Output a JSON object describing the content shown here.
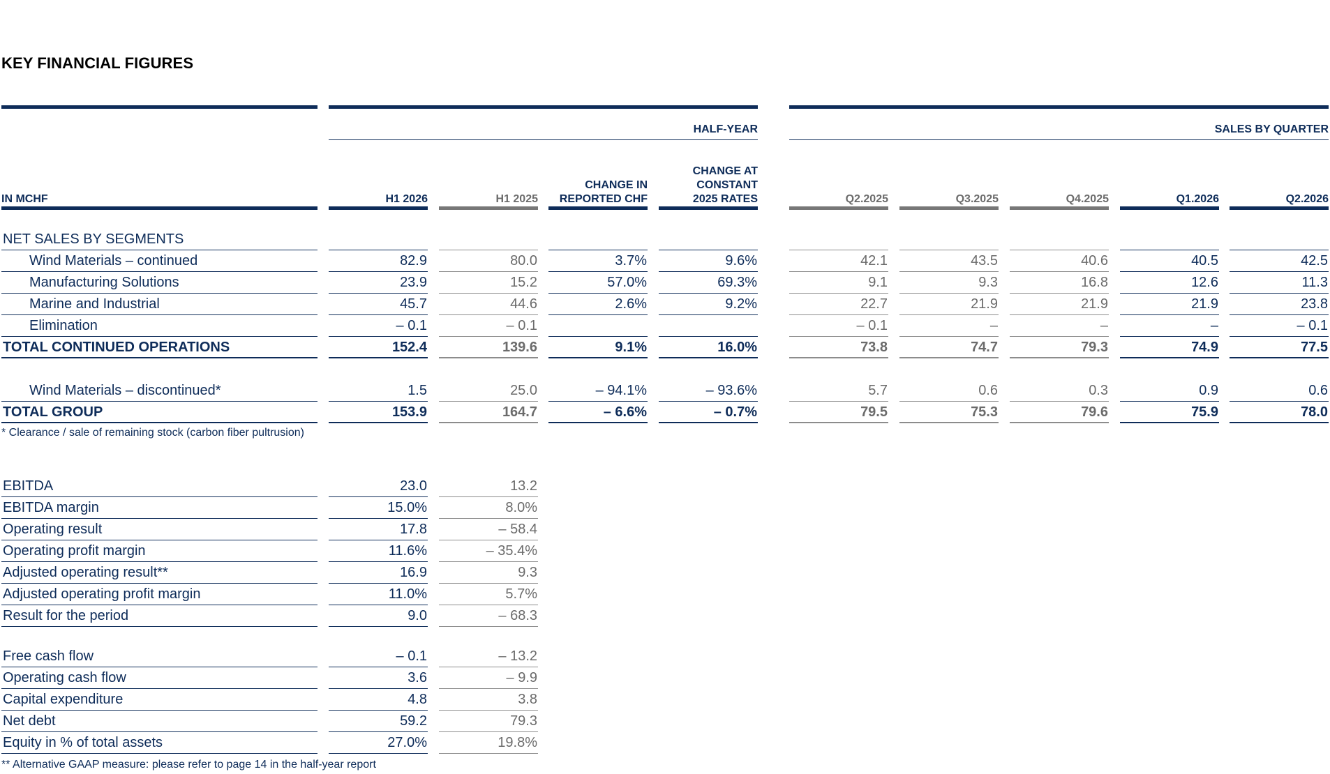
{
  "title": "KEY FINANCIAL FIGURES",
  "headers": {
    "unit_label": "IN MCHF",
    "half_year_group": "HALF-YEAR",
    "quarter_group": "SALES BY QUARTER",
    "half_year_cols": [
      {
        "lines": [
          "H1 2026"
        ],
        "style": "current"
      },
      {
        "lines": [
          "H1 2025"
        ],
        "style": "prior"
      },
      {
        "lines": [
          "CHANGE IN",
          "REPORTED CHF"
        ],
        "style": "current"
      },
      {
        "lines": [
          "CHANGE AT",
          "CONSTANT",
          "2025 RATES"
        ],
        "style": "current"
      }
    ],
    "quarter_cols": [
      {
        "lines": [
          "Q2.2025"
        ],
        "style": "prior"
      },
      {
        "lines": [
          "Q3.2025"
        ],
        "style": "prior"
      },
      {
        "lines": [
          "Q4.2025"
        ],
        "style": "prior"
      },
      {
        "lines": [
          "Q1.2026"
        ],
        "style": "current"
      },
      {
        "lines": [
          "Q2.2026"
        ],
        "style": "current"
      }
    ]
  },
  "sales_table": [
    {
      "label": "NET SALES BY SEGMENTS",
      "kind": "section",
      "values": [
        "",
        "",
        "",
        "",
        "",
        "",
        "",
        "",
        ""
      ]
    },
    {
      "label": "Wind Materials – continued",
      "kind": "indent",
      "values": [
        "82.9",
        "80.0",
        "3.7%",
        "9.6%",
        "42.1",
        "43.5",
        "40.6",
        "40.5",
        "42.5"
      ]
    },
    {
      "label": "Manufacturing Solutions",
      "kind": "indent",
      "values": [
        "23.9",
        "15.2",
        "57.0%",
        "69.3%",
        "9.1",
        "9.3",
        "16.8",
        "12.6",
        "11.3"
      ]
    },
    {
      "label": "Marine and Industrial",
      "kind": "indent",
      "values": [
        "45.7",
        "44.6",
        "2.6%",
        "9.2%",
        "22.7",
        "21.9",
        "21.9",
        "21.9",
        "23.8"
      ]
    },
    {
      "label": "Elimination",
      "kind": "indent",
      "values": [
        "– 0.1",
        "– 0.1",
        "",
        "",
        "– 0.1",
        "–",
        "–",
        "–",
        "– 0.1"
      ]
    },
    {
      "label": "TOTAL CONTINUED OPERATIONS",
      "kind": "total",
      "values": [
        "152.4",
        "139.6",
        "9.1%",
        "16.0%",
        "73.8",
        "74.7",
        "79.3",
        "74.9",
        "77.5"
      ]
    },
    {
      "label": "Wind Materials – discontinued*",
      "kind": "indent",
      "values": [
        "1.5",
        "25.0",
        "– 94.1%",
        "– 93.6%",
        "5.7",
        "0.6",
        "0.3",
        "0.9",
        "0.6"
      ]
    },
    {
      "label": "TOTAL GROUP",
      "kind": "total",
      "values": [
        "153.9",
        "164.7",
        "– 6.6%",
        "– 0.7%",
        "79.5",
        "75.3",
        "79.6",
        "75.9",
        "78.0"
      ]
    }
  ],
  "footnote_sales": "* Clearance / sale of remaining stock (carbon fiber pultrusion)",
  "profit_table": [
    {
      "label": "EBITDA",
      "h1_2026": "23.0",
      "h1_2025": "13.2"
    },
    {
      "label": "EBITDA margin",
      "h1_2026": "15.0%",
      "h1_2025": "8.0%"
    },
    {
      "label": "Operating result",
      "h1_2026": "17.8",
      "h1_2025": "– 58.4"
    },
    {
      "label": "Operating profit margin",
      "h1_2026": "11.6%",
      "h1_2025": "– 35.4%"
    },
    {
      "label": "Adjusted operating result**",
      "h1_2026": "16.9",
      "h1_2025": "9.3"
    },
    {
      "label": "Adjusted operating profit margin",
      "h1_2026": "11.0%",
      "h1_2025": "5.7%"
    },
    {
      "label": "Result for the period",
      "h1_2026": "9.0",
      "h1_2025": "– 68.3"
    }
  ],
  "cash_table": [
    {
      "label": "Free cash flow",
      "h1_2026": "– 0.1",
      "h1_2025": "– 13.2"
    },
    {
      "label": "Operating cash flow",
      "h1_2026": "3.6",
      "h1_2025": "– 9.9"
    },
    {
      "label": "Capital expenditure",
      "h1_2026": "4.8",
      "h1_2025": "3.8"
    },
    {
      "label": "Net debt",
      "h1_2026": "59.2",
      "h1_2025": "79.3"
    },
    {
      "label": "Equity in % of total assets",
      "h1_2026": "27.0%",
      "h1_2025": "19.8%"
    }
  ],
  "footnote_gaap": "** Alternative GAAP measure: please refer to page 14 in the half-year report",
  "colors": {
    "navy": "#0e2c59",
    "gray": "#6b6b6b",
    "gray_rule": "#777777",
    "title": "#000000"
  }
}
